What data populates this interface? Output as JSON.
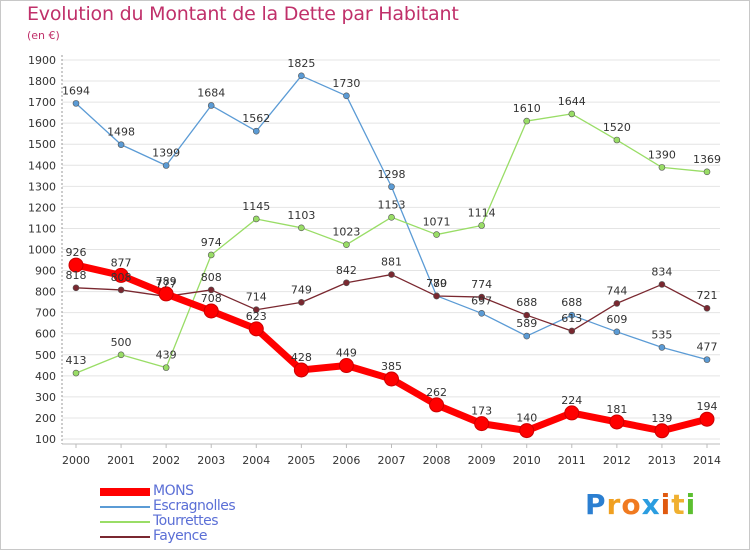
{
  "title": "Evolution du Montant de la Dette par Habitant",
  "subtitle": "(en €)",
  "logo": {
    "text": "Proxiti",
    "letters": [
      "P",
      "r",
      "o",
      "x",
      "i",
      "t",
      "i"
    ],
    "colors": [
      "#2b7fd1",
      "#f0a020",
      "#f07a20",
      "#2b9de0",
      "#e05a10",
      "#f0b030",
      "#5cbf30"
    ]
  },
  "chart_data": {
    "type": "line",
    "title": "Evolution du Montant de la Dette par Habitant",
    "subtitle": "(en €)",
    "x": [
      "2000",
      "2001",
      "2002",
      "2003",
      "2004",
      "2005",
      "2006",
      "2007",
      "2008",
      "2009",
      "2010",
      "2011",
      "2012",
      "2013",
      "2014"
    ],
    "ylim": [
      100,
      1900
    ],
    "yticks": [
      100,
      200,
      300,
      400,
      500,
      600,
      700,
      800,
      900,
      1000,
      1100,
      1200,
      1300,
      1400,
      1500,
      1600,
      1700,
      1800,
      1900
    ],
    "grid": "horizontal",
    "legend_position": "bottom-left",
    "series": [
      {
        "name": "MONS",
        "color": "#ff0000",
        "width": 7,
        "marker": 7,
        "values": [
          926,
          877,
          789,
          708,
          623,
          428,
          449,
          385,
          262,
          173,
          140,
          224,
          181,
          139,
          194
        ],
        "labels": [
          "926",
          "877",
          "789",
          "708",
          "623",
          "428",
          "449",
          "385",
          "262",
          "173",
          "140",
          "224",
          "181",
          "139",
          "194"
        ]
      },
      {
        "name": "Escragnolles",
        "color": "#5b9bd5",
        "width": 1.3,
        "marker": 3,
        "values": [
          1694,
          1498,
          1399,
          1684,
          1562,
          1825,
          1730,
          1298,
          780,
          697,
          589,
          688,
          609,
          535,
          477
        ],
        "labels": [
          "1694",
          "1498",
          "1399",
          "1684",
          "1562",
          "1825",
          "1730",
          "1298",
          "780",
          "697",
          "589",
          "688",
          "609",
          "535",
          "477"
        ]
      },
      {
        "name": "Tourrettes",
        "color": "#99dd66",
        "width": 1.3,
        "marker": 3,
        "values": [
          413,
          500,
          439,
          974,
          1145,
          1103,
          1023,
          1153,
          1071,
          1114,
          1610,
          1644,
          1520,
          1390,
          1369
        ],
        "labels": [
          "413",
          "500",
          "439",
          "974",
          "1145",
          "1103",
          "1023",
          "1153",
          "1071",
          "1114",
          "1610",
          "1644",
          "1520",
          "1390",
          "1369"
        ]
      },
      {
        "name": "Fayence",
        "color": "#7a2830",
        "width": 1.3,
        "marker": 3,
        "values": [
          818,
          808,
          777,
          808,
          714,
          749,
          842,
          881,
          779,
          774,
          688,
          613,
          744,
          834,
          721
        ],
        "labels": [
          "818",
          "808",
          "777",
          "808",
          "714",
          "749",
          "842",
          "881",
          "779",
          "774",
          "688",
          "613",
          "744",
          "834",
          "721"
        ]
      }
    ]
  }
}
